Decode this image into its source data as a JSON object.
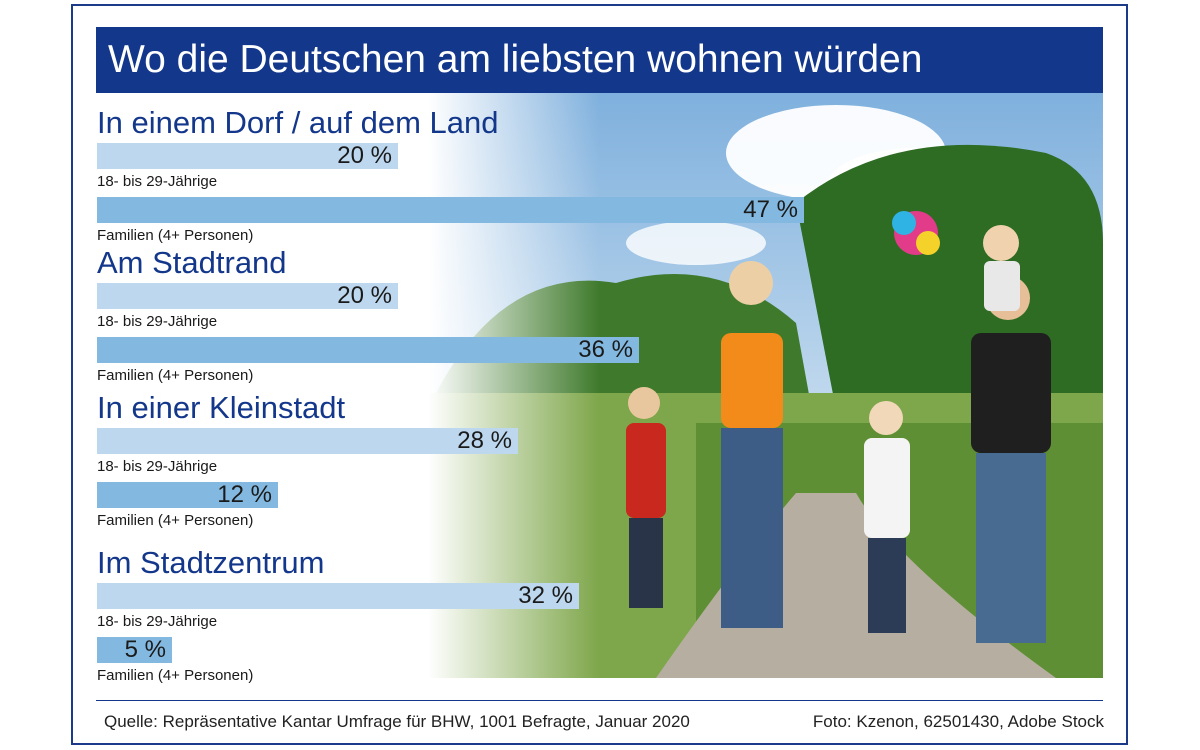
{
  "title": "Wo die Deutschen am liebsten wohnen würden",
  "chart_data": {
    "type": "bar",
    "orientation": "horizontal",
    "categories": [
      "In einem Dorf / auf dem Land",
      "Am Stadtrand",
      "In einer Kleinstadt",
      "Im Stadtzentrum"
    ],
    "series": [
      {
        "name": "18- bis 29-Jährige",
        "values": [
          20,
          20,
          28,
          32
        ],
        "color": "#bcd7ee"
      },
      {
        "name": "Familien (4+ Personen)",
        "values": [
          47,
          36,
          12,
          5
        ],
        "color": "#83b9e0"
      }
    ],
    "value_suffix": " %",
    "xlim": [
      0,
      60
    ],
    "grid": false,
    "legend": "none"
  },
  "colors": {
    "title_background": "#13378a",
    "category_text": "#13378a",
    "accent_border": "#1c3a8a"
  },
  "footer": {
    "source": "Quelle: Repräsentative Kantar Umfrage für BHW, 1001 Befragte, Januar 2020",
    "credit": "Foto: Kzenon, 62501430, Adobe Stock"
  }
}
